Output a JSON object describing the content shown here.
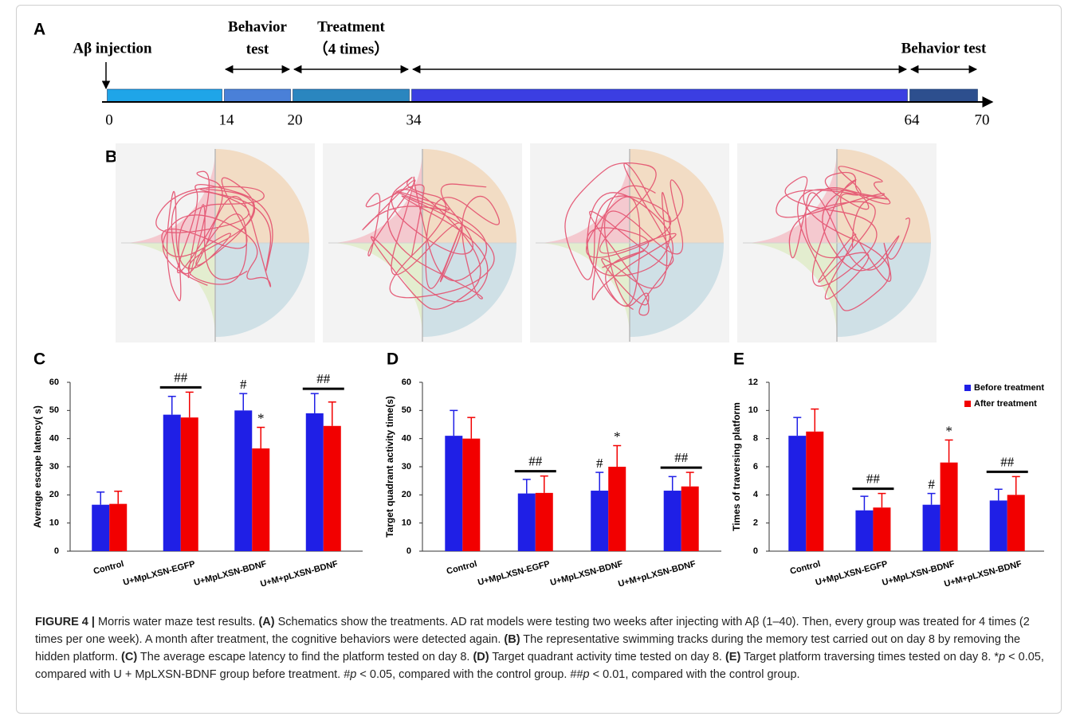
{
  "panel_a": {
    "label": "A",
    "ticks": [
      0,
      14,
      20,
      34,
      64,
      70
    ],
    "segment_colors": [
      "#1fa5e8",
      "#4a80d8",
      "#2a86bf",
      "#3b3ee2",
      "#2d4f8e"
    ],
    "events": [
      {
        "text": "Aβ injection",
        "at": 0
      },
      {
        "lines": [
          "Behavior",
          "test"
        ],
        "from": 14,
        "to": 20
      },
      {
        "lines": [
          "Treatment",
          "（4 times）"
        ],
        "from": 20,
        "to": 34
      },
      {
        "from": 34,
        "to": 64
      },
      {
        "text": "Behavior test",
        "from": 64,
        "to": 70
      }
    ]
  },
  "panel_b": {
    "label": "B"
  },
  "chart_data": [
    {
      "type": "bar",
      "panel_label": "C",
      "y_label": "Average escape latency( s)",
      "categories": [
        "Control",
        "U+MpLXSN-EGFP",
        "U+MpLXSN-BDNF",
        "U+M+pLXSN-BDNF"
      ],
      "ylim": [
        0,
        60
      ],
      "yticks": [
        0,
        10,
        20,
        30,
        40,
        50,
        60
      ],
      "series": [
        {
          "color": "#1f1fe6",
          "values": [
            16.5,
            48.5,
            50,
            49
          ],
          "errors": [
            4.5,
            6.5,
            6,
            7
          ],
          "annotations": [
            null,
            null,
            "#",
            null
          ]
        },
        {
          "color": "#f20000",
          "values": [
            16.8,
            47.5,
            36.5,
            44.5
          ],
          "errors": [
            4.5,
            9,
            7.5,
            8.5
          ],
          "annotations": [
            null,
            null,
            "*",
            null
          ]
        }
      ],
      "group_annotations": [
        null,
        "##",
        null,
        "##"
      ]
    },
    {
      "type": "bar",
      "panel_label": "D",
      "y_label": "Target quadrant activity time(s)",
      "categories": [
        "Control",
        "U+MpLXSN-EGFP",
        "U+MpLXSN-BDNF",
        "U+M+pLXSN-BDNF"
      ],
      "ylim": [
        0,
        60
      ],
      "yticks": [
        0,
        10,
        20,
        30,
        40,
        50,
        60
      ],
      "series": [
        {
          "color": "#1f1fe6",
          "values": [
            41,
            20.5,
            21.5,
            21.5
          ],
          "errors": [
            9,
            5,
            6.5,
            5
          ],
          "annotations": [
            null,
            null,
            "#",
            null
          ]
        },
        {
          "color": "#f20000",
          "values": [
            40,
            20.7,
            30,
            23
          ],
          "errors": [
            7.5,
            6,
            7.5,
            5
          ],
          "annotations": [
            null,
            null,
            "*",
            null
          ]
        }
      ],
      "group_annotations": [
        null,
        "##",
        null,
        "##"
      ]
    },
    {
      "type": "bar",
      "panel_label": "E",
      "y_label": "Times of traversing platform",
      "categories": [
        "Control",
        "U+MpLXSN-EGFP",
        "U+MpLXSN-BDNF",
        "U+M+pLXSN-BDNF"
      ],
      "ylim": [
        0,
        12
      ],
      "yticks": [
        0,
        2,
        4,
        6,
        8,
        10,
        12
      ],
      "legend": "upper right",
      "series": [
        {
          "name": "Before treatment",
          "color": "#1f1fe6",
          "values": [
            8.2,
            2.9,
            3.3,
            3.6
          ],
          "errors": [
            1.3,
            1.0,
            0.8,
            0.8
          ],
          "annotations": [
            null,
            null,
            "#",
            null
          ]
        },
        {
          "name": "After treatment",
          "color": "#f20000",
          "values": [
            8.5,
            3.1,
            6.3,
            4.0
          ],
          "errors": [
            1.6,
            1.0,
            1.6,
            1.3
          ],
          "annotations": [
            null,
            null,
            "*",
            null
          ]
        }
      ],
      "group_annotations": [
        null,
        "##",
        null,
        "##"
      ]
    }
  ],
  "caption": [
    {
      "text": "FIGURE 4 |",
      "style": "bold"
    },
    {
      "text": " Morris water maze test results. "
    },
    {
      "text": "(A)",
      "style": "bold"
    },
    {
      "text": " Schematics show the treatments. AD rat models were testing two weeks after injecting with Aβ (1–40). Then, every group was treated for 4 times (2 times per one week). A month after treatment, the cognitive behaviors were detected again. "
    },
    {
      "text": "(B)",
      "style": "bold"
    },
    {
      "text": " The representative swimming tracks during the memory test carried out on day 8 by removing the hidden platform. "
    },
    {
      "text": "(C)",
      "style": "bold"
    },
    {
      "text": " The average escape latency to find the platform tested on day 8. "
    },
    {
      "text": "(D)",
      "style": "bold"
    },
    {
      "text": " Target quadrant activity time tested on day 8. "
    },
    {
      "text": "(E)",
      "style": "bold"
    },
    {
      "text": " Target platform traversing times tested on day 8. *"
    },
    {
      "text": "p",
      "style": "italic"
    },
    {
      "text": " < 0.05, compared with U + MpLXSN-BDNF group before treatment. #"
    },
    {
      "text": "p",
      "style": "italic"
    },
    {
      "text": " < 0.05, compared with the control group. ##"
    },
    {
      "text": "p",
      "style": "italic"
    },
    {
      "text": " < 0.01, compared with the control group."
    }
  ]
}
